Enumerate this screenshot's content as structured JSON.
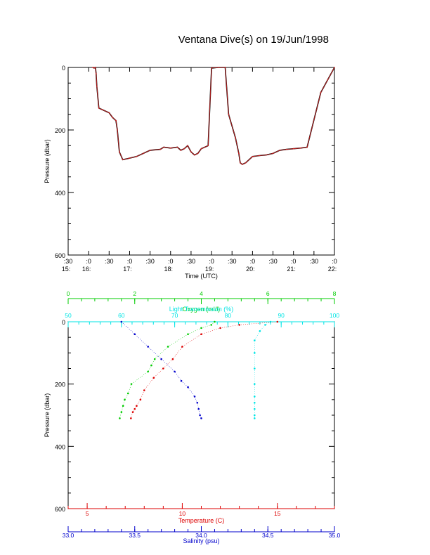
{
  "title": "Ventana Dive(s) on 19/Jun/1998",
  "chart_data": [
    {
      "type": "line",
      "xlabel": "Time (UTC)",
      "ylabel": "Pressure (dbar)",
      "y_inverted": true,
      "ylim": [
        0,
        600
      ],
      "xlim": [
        "15:30",
        "22:00"
      ],
      "y_ticks": [
        "0",
        "200",
        "400",
        "600"
      ],
      "x_ticks": [
        {
          "top": ":30",
          "bottom": "15:"
        },
        {
          "top": ":0",
          "bottom": "16:"
        },
        {
          "top": ":30",
          "bottom": ""
        },
        {
          "top": ":0",
          "bottom": "17:"
        },
        {
          "top": ":30",
          "bottom": ""
        },
        {
          "top": ":0",
          "bottom": "18:"
        },
        {
          "top": ":30",
          "bottom": ""
        },
        {
          "top": ":0",
          "bottom": "19:"
        },
        {
          "top": ":30",
          "bottom": ""
        },
        {
          "top": ":0",
          "bottom": "20:"
        },
        {
          "top": ":30",
          "bottom": ""
        },
        {
          "top": ":0",
          "bottom": "21:"
        },
        {
          "top": ":30",
          "bottom": ""
        },
        {
          "top": ":0",
          "bottom": "22:"
        }
      ],
      "series": [
        {
          "color": "#d02020",
          "x": [
            "16:06",
            "16:08",
            "16:10",
            "16:11",
            "16:12",
            "16:15",
            "16:20",
            "16:30",
            "16:35",
            "16:40",
            "16:42",
            "16:45",
            "16:50",
            "17:00",
            "17:10",
            "17:20",
            "17:30",
            "17:45",
            "17:50",
            "18:00",
            "18:10",
            "18:15",
            "18:20",
            "18:25",
            "18:30",
            "18:35",
            "18:40",
            "18:45",
            "18:50",
            "18:55",
            "19:00",
            "19:10",
            "19:20",
            "19:25",
            "19:35",
            "19:40",
            "19:42",
            "19:45",
            "19:50",
            "20:00",
            "20:10",
            "20:20",
            "20:30",
            "20:40",
            "20:50",
            "21:00",
            "21:10",
            "21:20",
            "21:40",
            "21:50",
            "22:00"
          ],
          "y": [
            0,
            2,
            0,
            20,
            60,
            130,
            135,
            145,
            160,
            170,
            200,
            270,
            295,
            290,
            285,
            275,
            265,
            262,
            255,
            258,
            255,
            265,
            260,
            250,
            270,
            280,
            275,
            260,
            255,
            250,
            2,
            0,
            0,
            150,
            225,
            275,
            305,
            310,
            305,
            285,
            282,
            280,
            275,
            265,
            262,
            260,
            258,
            255,
            80,
            40,
            0
          ]
        }
      ]
    },
    {
      "type": "scatter",
      "ylabel": "Pressure (dbar)",
      "y_inverted": true,
      "ylim": [
        0,
        600
      ],
      "y_ticks": [
        "0",
        "200",
        "400",
        "600"
      ],
      "axes": [
        {
          "label": "Oxygen (ml/l)",
          "color": "#00cc00",
          "range": [
            0,
            8
          ],
          "ticks": [
            "0",
            "2",
            "4",
            "6",
            "8"
          ]
        },
        {
          "label": "Light Transmission (%)",
          "color": "#00e5e5",
          "range": [
            50,
            100
          ],
          "ticks": [
            "50",
            "60",
            "70",
            "80",
            "90",
            "100"
          ]
        },
        {
          "label": "Temperature (C)",
          "color": "#dd0000",
          "range": [
            4,
            18
          ],
          "ticks": [
            "5",
            "10",
            "15"
          ]
        },
        {
          "label": "Salinity (psu)",
          "color": "#0000cc",
          "range": [
            33.0,
            35.0
          ],
          "ticks": [
            "33.0",
            "33.5",
            "34.0",
            "34.5",
            "35.0"
          ]
        }
      ],
      "series": [
        {
          "color": "#00cc00",
          "axis": 0,
          "x": [
            4.4,
            4.3,
            4.0,
            3.6,
            3.0,
            2.6,
            2.5,
            2.4,
            1.9,
            1.8,
            1.7,
            1.65,
            1.6,
            1.55
          ],
          "y": [
            0,
            10,
            20,
            40,
            80,
            120,
            140,
            160,
            200,
            230,
            250,
            270,
            290,
            310
          ]
        },
        {
          "color": "#00e5e5",
          "axis": 1,
          "x": [
            88,
            87,
            86,
            85,
            85,
            85,
            85,
            85,
            85,
            85,
            85,
            85
          ],
          "y": [
            0,
            10,
            30,
            60,
            100,
            150,
            200,
            240,
            260,
            280,
            300,
            310
          ]
        },
        {
          "color": "#dd0000",
          "axis": 2,
          "x": [
            15,
            13,
            12,
            11,
            10,
            9.5,
            9,
            8.5,
            8,
            7.8,
            7.6,
            7.5,
            7.4,
            7.3
          ],
          "y": [
            0,
            10,
            20,
            40,
            80,
            120,
            150,
            180,
            220,
            250,
            270,
            280,
            290,
            310
          ]
        },
        {
          "color": "#0000cc",
          "axis": 3,
          "x": [
            33.4,
            33.5,
            33.6,
            33.7,
            33.8,
            33.85,
            33.9,
            33.95,
            33.97,
            33.98,
            33.99,
            34.0
          ],
          "y": [
            0,
            40,
            80,
            120,
            160,
            190,
            210,
            240,
            260,
            280,
            300,
            310
          ]
        }
      ]
    }
  ]
}
